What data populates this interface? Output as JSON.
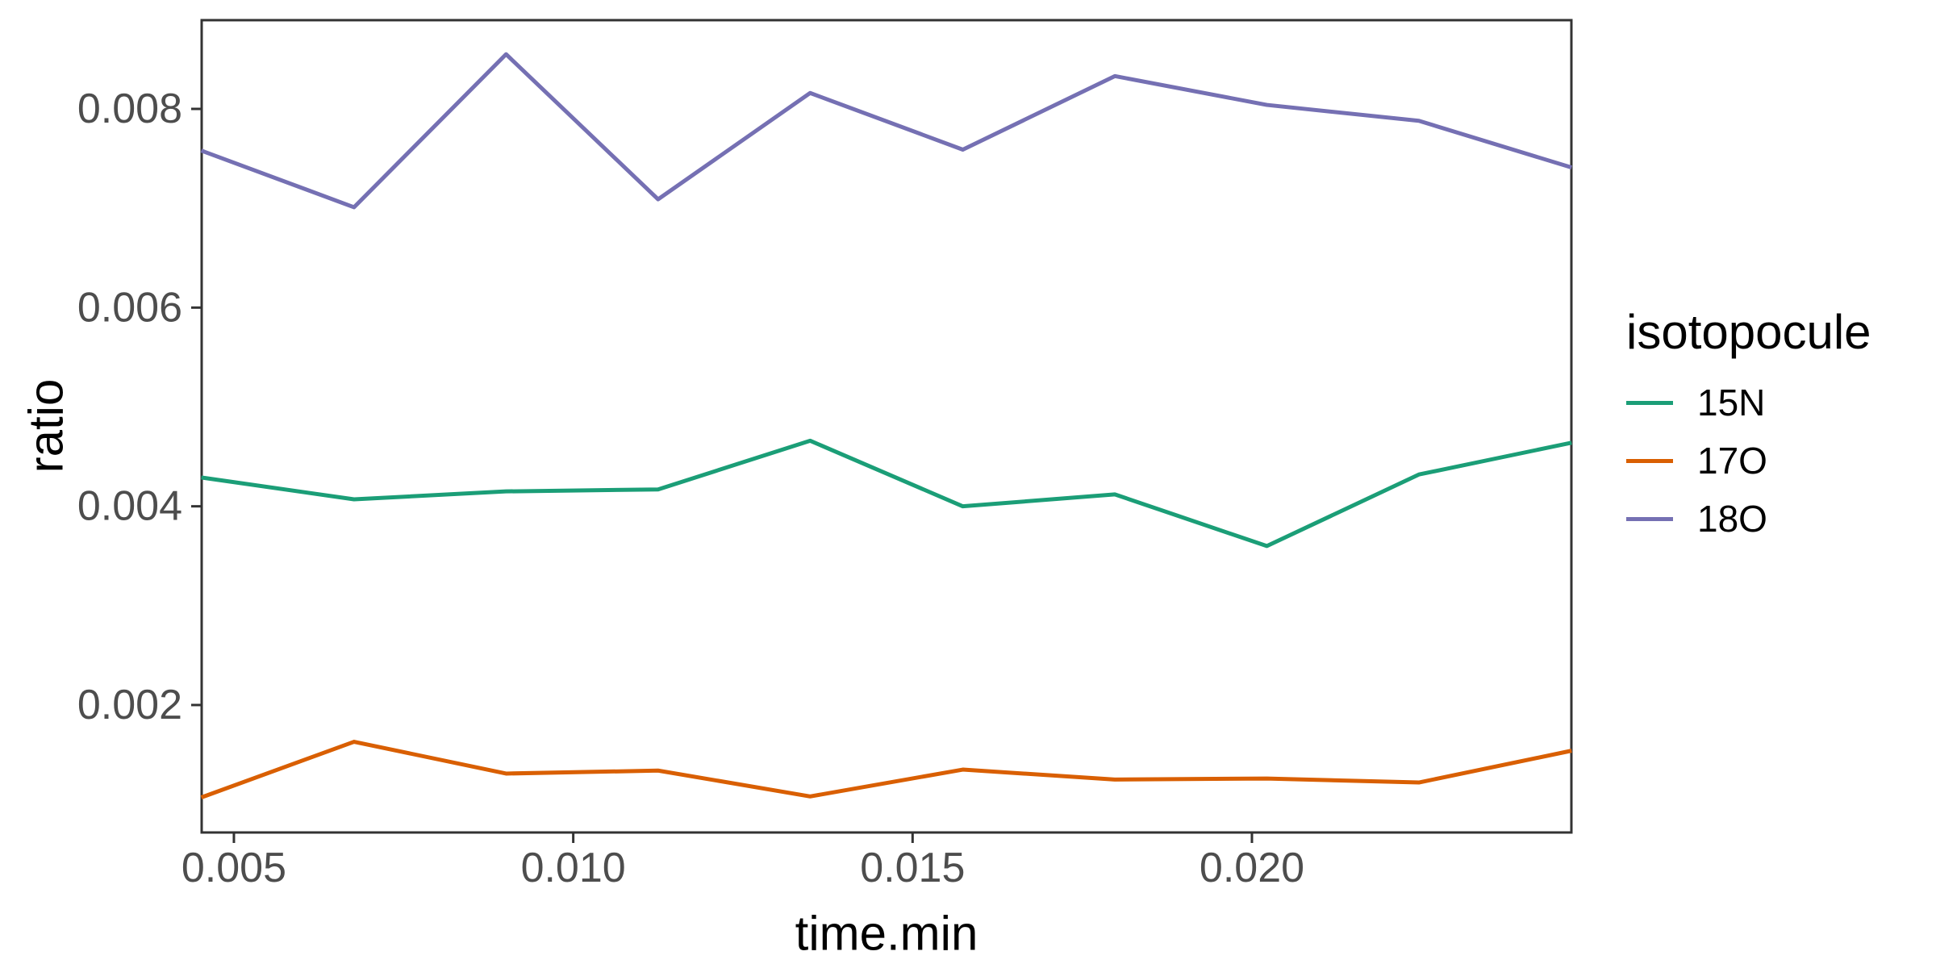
{
  "chart_data": {
    "type": "line",
    "title": "",
    "xlabel": "time.min",
    "ylabel": "ratio",
    "grid": "off",
    "background": "#FFFFFF",
    "x": [
      0.00452,
      0.00677,
      0.00901,
      0.01125,
      0.01349,
      0.01574,
      0.01798,
      0.02022,
      0.02246,
      0.02471
    ],
    "series": [
      {
        "name": "15N",
        "color": "#1B9E77",
        "values": [
          0.00429,
          0.00407,
          0.00415,
          0.00417,
          0.00466,
          0.004,
          0.00412,
          0.0036,
          0.00432,
          0.00464
        ]
      },
      {
        "name": "17O",
        "color": "#D95F02",
        "values": [
          0.00107,
          0.00163,
          0.00131,
          0.00134,
          0.00108,
          0.00135,
          0.00125,
          0.00126,
          0.00122,
          0.00154
        ]
      },
      {
        "name": "18O",
        "color": "#7570B3",
        "values": [
          0.00758,
          0.00701,
          0.00855,
          0.00709,
          0.00816,
          0.00759,
          0.00833,
          0.00804,
          0.00788,
          0.00741
        ]
      }
    ],
    "x_ticks": [
      {
        "value": 0.005,
        "label": "0.005"
      },
      {
        "value": 0.01,
        "label": "0.010"
      },
      {
        "value": 0.015,
        "label": "0.015"
      },
      {
        "value": 0.02,
        "label": "0.020"
      }
    ],
    "y_ticks": [
      {
        "value": 0.002,
        "label": "0.002"
      },
      {
        "value": 0.004,
        "label": "0.004"
      },
      {
        "value": 0.006,
        "label": "0.006"
      },
      {
        "value": 0.008,
        "label": "0.008"
      }
    ],
    "xlim": [
      0.004525,
      0.024707
    ],
    "ylim": [
      0.000717,
      0.008893
    ],
    "legend": {
      "title": "isotopocule",
      "position": "right"
    }
  },
  "style": {
    "axis_line_color": "#333333",
    "tick_label_color": "#4D4D4D",
    "axis_title_color": "#000000",
    "line_width": 5,
    "axis_line_width": 3,
    "tick_length": 13
  }
}
